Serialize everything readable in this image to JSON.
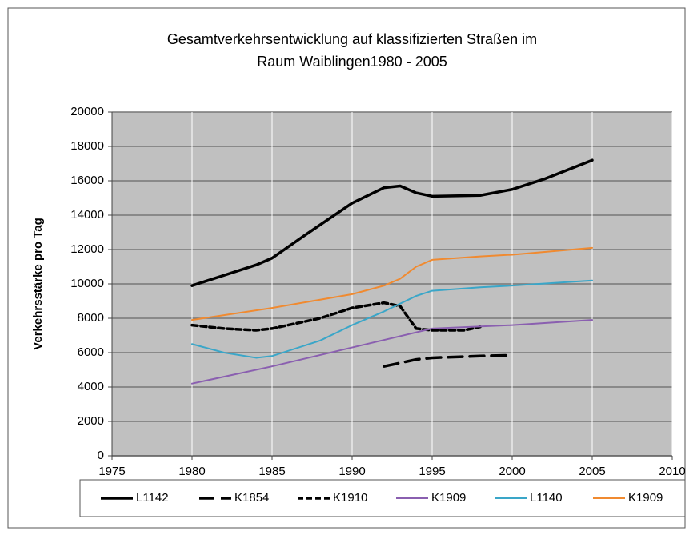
{
  "chart_data": {
    "type": "line",
    "title": [
      "Gesamtverkehrsentwicklung auf klassifizierten Straßen im",
      "Raum Waiblingen1980 - 2005"
    ],
    "ylabel": "Verkehrsstärke pro Tag",
    "xlim": [
      1975,
      2010
    ],
    "xticks": [
      1975,
      1980,
      1985,
      1990,
      1995,
      2000,
      2005,
      2010
    ],
    "ylim": [
      0,
      20000
    ],
    "yticks": [
      0,
      2000,
      4000,
      6000,
      8000,
      10000,
      12000,
      14000,
      16000,
      18000,
      20000
    ],
    "grid": true,
    "legend": "bottom",
    "series": [
      {
        "name": "L1142",
        "color": "#000000",
        "linestyle": "solid",
        "x": [
          1980,
          1982,
          1984,
          1985,
          1987,
          1990,
          1992,
          1993,
          1994,
          1995,
          1998,
          2000,
          2002,
          2005
        ],
        "values": [
          9900,
          10500,
          11100,
          11500,
          12800,
          14700,
          15600,
          15700,
          15300,
          15100,
          15150,
          15500,
          16100,
          17200
        ]
      },
      {
        "name": "K1854",
        "color": "#000000",
        "linestyle": "long-dash",
        "x": [
          1992,
          1994,
          1995,
          1998,
          2000
        ],
        "values": [
          5200,
          5600,
          5700,
          5800,
          5850
        ]
      },
      {
        "name": "K1910",
        "color": "#000000",
        "linestyle": "short-dash",
        "x": [
          1980,
          1982,
          1984,
          1985,
          1988,
          1990,
          1992,
          1993,
          1994,
          1995,
          1997,
          1998
        ],
        "values": [
          7600,
          7400,
          7300,
          7400,
          8000,
          8600,
          8900,
          8700,
          7400,
          7300,
          7300,
          7500
        ]
      },
      {
        "name": "K1909",
        "color": "#8a5fb0",
        "linestyle": "solid",
        "x": [
          1980,
          1985,
          1990,
          1995,
          2000,
          2005
        ],
        "values": [
          4200,
          5200,
          6300,
          7400,
          7600,
          7900
        ]
      },
      {
        "name": "L1140",
        "color": "#3aa6c8",
        "linestyle": "solid",
        "x": [
          1980,
          1982,
          1984,
          1985,
          1988,
          1990,
          1992,
          1994,
          1995,
          1998,
          2000,
          2005
        ],
        "values": [
          6500,
          6000,
          5700,
          5800,
          6700,
          7600,
          8400,
          9300,
          9600,
          9800,
          9900,
          10200
        ]
      },
      {
        "name": "K1909",
        "color": "#f08a30",
        "linestyle": "solid",
        "x": [
          1980,
          1985,
          1990,
          1992,
          1993,
          1994,
          1995,
          1998,
          2000,
          2005
        ],
        "values": [
          7900,
          8600,
          9400,
          9900,
          10300,
          11000,
          11400,
          11600,
          11700,
          12100
        ]
      }
    ]
  }
}
